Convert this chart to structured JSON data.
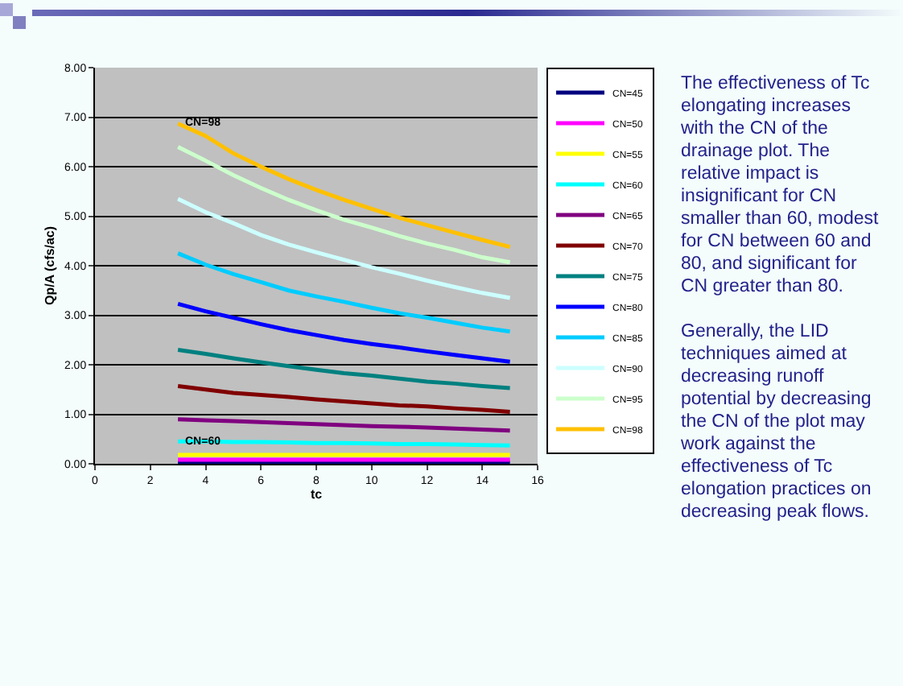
{
  "chart_data": {
    "type": "line",
    "xlabel": "tc",
    "ylabel": "Qp/A (cfs/ac)",
    "x": [
      3,
      4,
      5,
      6,
      7,
      8,
      9,
      10,
      11,
      12,
      13,
      14,
      15
    ],
    "xlim": [
      0,
      16
    ],
    "xticks": [
      0,
      2,
      4,
      6,
      8,
      10,
      12,
      14,
      16
    ],
    "ylim": [
      0,
      8
    ],
    "yticks": [
      {
        "value": 0,
        "label": "0.00"
      },
      {
        "value": 1,
        "label": "1.00"
      },
      {
        "value": 2,
        "label": "2.00"
      },
      {
        "value": 3,
        "label": "3.00"
      },
      {
        "value": 4,
        "label": "4.00"
      },
      {
        "value": 5,
        "label": "5.00"
      },
      {
        "value": 6,
        "label": "6.00"
      },
      {
        "value": 7,
        "label": "7.00"
      },
      {
        "value": 8,
        "label": "8.00"
      }
    ],
    "grid": "y",
    "legend": "top right",
    "marker": "none",
    "line_style": "solid",
    "series": [
      {
        "name": "CN=45",
        "color": "#000080",
        "values": [
          0.02,
          0.02,
          0.02,
          0.02,
          0.02,
          0.02,
          0.02,
          0.02,
          0.02,
          0.02,
          0.02,
          0.02,
          0.02
        ]
      },
      {
        "name": "CN=50",
        "color": "#ff00ff",
        "values": [
          0.08,
          0.08,
          0.08,
          0.08,
          0.08,
          0.08,
          0.08,
          0.08,
          0.08,
          0.08,
          0.08,
          0.08,
          0.08
        ]
      },
      {
        "name": "CN=55",
        "color": "#ffff00",
        "values": [
          0.18,
          0.18,
          0.18,
          0.18,
          0.18,
          0.18,
          0.18,
          0.18,
          0.18,
          0.18,
          0.18,
          0.18,
          0.18
        ]
      },
      {
        "name": "CN=60",
        "color": "#00ffff",
        "values": [
          0.45,
          0.45,
          0.44,
          0.44,
          0.43,
          0.42,
          0.42,
          0.41,
          0.4,
          0.4,
          0.39,
          0.38,
          0.37
        ]
      },
      {
        "name": "CN=65",
        "color": "#800080",
        "values": [
          0.9,
          0.88,
          0.86,
          0.84,
          0.82,
          0.8,
          0.78,
          0.76,
          0.75,
          0.73,
          0.71,
          0.69,
          0.67
        ]
      },
      {
        "name": "CN=70",
        "color": "#800000",
        "values": [
          1.57,
          1.5,
          1.43,
          1.39,
          1.35,
          1.3,
          1.26,
          1.22,
          1.18,
          1.16,
          1.12,
          1.09,
          1.05
        ]
      },
      {
        "name": "CN=75",
        "color": "#008080",
        "values": [
          2.3,
          2.22,
          2.13,
          2.05,
          1.97,
          1.9,
          1.83,
          1.78,
          1.72,
          1.66,
          1.62,
          1.57,
          1.53
        ]
      },
      {
        "name": "CN=80",
        "color": "#0000ff",
        "values": [
          3.23,
          3.08,
          2.95,
          2.82,
          2.7,
          2.6,
          2.5,
          2.42,
          2.35,
          2.27,
          2.2,
          2.13,
          2.06
        ]
      },
      {
        "name": "CN=85",
        "color": "#00ccff",
        "values": [
          4.25,
          4.02,
          3.83,
          3.67,
          3.5,
          3.38,
          3.27,
          3.15,
          3.04,
          2.95,
          2.85,
          2.75,
          2.67
        ]
      },
      {
        "name": "CN=90",
        "color": "#ccffff",
        "values": [
          5.35,
          5.08,
          4.86,
          4.62,
          4.43,
          4.27,
          4.12,
          3.97,
          3.84,
          3.7,
          3.57,
          3.45,
          3.35
        ]
      },
      {
        "name": "CN=95",
        "color": "#ccffcc",
        "values": [
          6.4,
          6.12,
          5.83,
          5.57,
          5.33,
          5.12,
          4.93,
          4.77,
          4.6,
          4.45,
          4.32,
          4.17,
          4.07
        ]
      },
      {
        "name": "CN=98",
        "color": "#ffc000",
        "values": [
          6.87,
          6.62,
          6.27,
          6.0,
          5.75,
          5.53,
          5.33,
          5.15,
          4.97,
          4.82,
          4.67,
          4.52,
          4.38
        ]
      }
    ],
    "annotations": [
      {
        "text": "CN=98",
        "x": 3,
        "y": 6.87
      },
      {
        "text": "CN=60",
        "x": 3,
        "y": 0.45
      },
      "The effectiveness of Tc elongating increases with the CN of the drainage plot. The relative impact is insignificant for CN smaller than 60, modest for CN between 60 and 80, and significant for CN greater than 80.",
      "Generally, the LID techniques aimed at decreasing runoff potential by decreasing the CN of the plot may work against the effectiveness of Tc elongation practices on decreasing peak flows."
    ]
  }
}
